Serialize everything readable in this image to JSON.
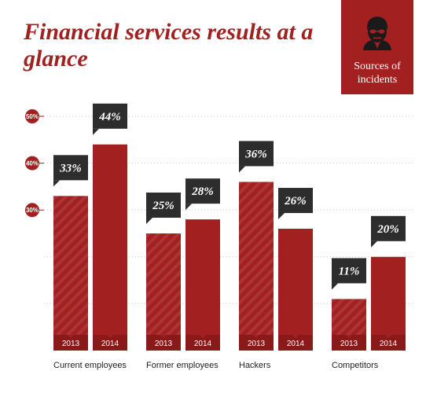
{
  "header": {
    "title": "Financial services results at a glance",
    "badge_label": "Sources of incidents",
    "badge_icon": "businessman-icon"
  },
  "colors": {
    "primary": "#a32020",
    "dark": "#2d2d2d",
    "year_strip": "#8a1a1a"
  },
  "chart_data": {
    "type": "bar",
    "title": "Financial services results at a glance",
    "categories": [
      "Current employees",
      "Former employees",
      "Hackers",
      "Competitors"
    ],
    "series": [
      {
        "name": "2013",
        "values": [
          33,
          25,
          36,
          11
        ]
      },
      {
        "name": "2014",
        "values": [
          44,
          28,
          26,
          20
        ]
      }
    ],
    "value_labels": [
      [
        "33%",
        "44%"
      ],
      [
        "25%",
        "28%"
      ],
      [
        "36%",
        "26%"
      ],
      [
        "11%",
        "20%"
      ]
    ],
    "y_ticks": [
      {
        "value": 30,
        "label": "30%"
      },
      {
        "value": 40,
        "label": "40%"
      },
      {
        "value": 50,
        "label": "50%"
      }
    ],
    "ylim": [
      0,
      50
    ],
    "ylabel": "",
    "xlabel": "",
    "grid": true,
    "hatched_series": "2013"
  }
}
